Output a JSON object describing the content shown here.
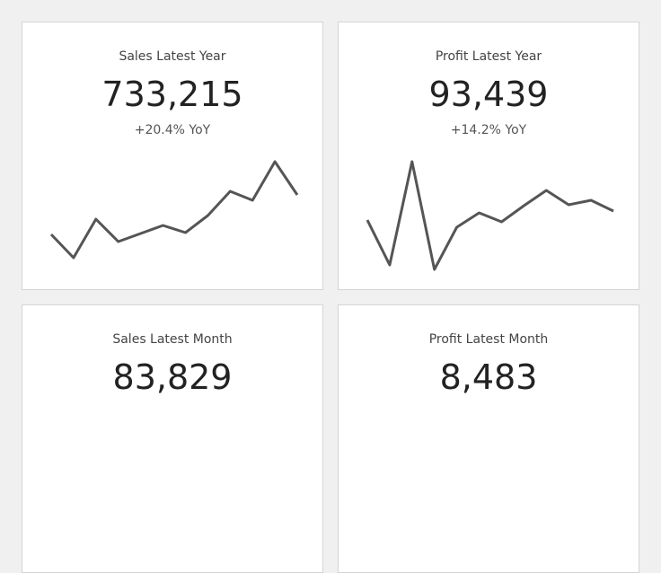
{
  "cards": [
    {
      "title": "Sales Latest Year",
      "value": "733,215",
      "change": "+20.4% YoY",
      "sparkline": [
        40,
        14,
        57,
        32,
        41,
        50,
        42,
        61,
        88,
        78,
        121,
        84
      ]
    },
    {
      "title": "Profit Latest Year",
      "value": "93,439",
      "change": "+14.2% YoY",
      "sparkline": [
        56,
        6,
        121,
        1,
        48,
        64,
        54,
        72,
        89,
        73,
        78,
        66
      ]
    },
    {
      "title": "Sales Latest Month",
      "value": "83,829"
    },
    {
      "title": "Profit Latest Month",
      "value": "8,483"
    }
  ]
}
